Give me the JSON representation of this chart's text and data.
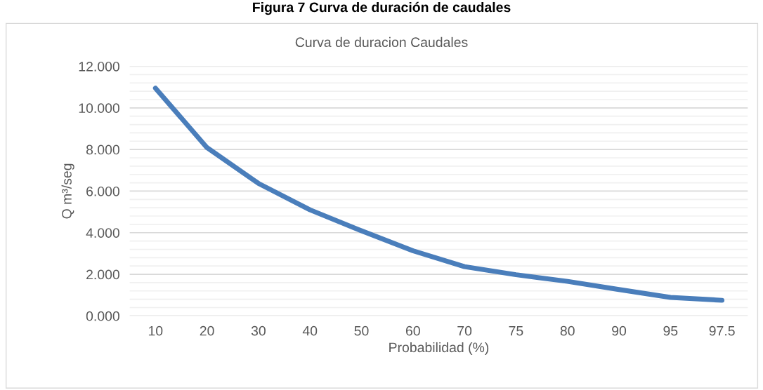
{
  "chart_data": {
    "type": "line",
    "title": "Figura 7 Curva de duración de caudales",
    "subtitle": "Curva de duracion Caudales",
    "xlabel": "Probabilidad (%)",
    "ylabel": "Q m³/seg",
    "categories": [
      "10",
      "20",
      "30",
      "40",
      "50",
      "60",
      "70",
      "75",
      "80",
      "90",
      "95",
      "97.5"
    ],
    "series": [
      {
        "color": "#4a7ebb",
        "values": [
          10.95,
          8.09,
          6.37,
          5.1,
          4.09,
          3.13,
          2.37,
          1.98,
          1.66,
          1.27,
          0.89,
          0.75
        ]
      }
    ],
    "ylim": [
      0,
      12
    ],
    "yticks": [
      {
        "value": 0,
        "label": "0.000"
      },
      {
        "value": 0.4,
        "label": null
      },
      {
        "value": 0.8,
        "label": null
      },
      {
        "value": 1.2,
        "label": null
      },
      {
        "value": 1.6,
        "label": null
      },
      {
        "value": 2,
        "label": "2.000"
      },
      {
        "value": 2.4,
        "label": null
      },
      {
        "value": 2.8,
        "label": null
      },
      {
        "value": 3.2,
        "label": null
      },
      {
        "value": 3.6,
        "label": null
      },
      {
        "value": 4,
        "label": "4.000"
      },
      {
        "value": 4.4,
        "label": null
      },
      {
        "value": 4.8,
        "label": null
      },
      {
        "value": 5.2,
        "label": null
      },
      {
        "value": 5.6,
        "label": null
      },
      {
        "value": 6,
        "label": "6.000"
      },
      {
        "value": 6.4,
        "label": null
      },
      {
        "value": 6.8,
        "label": null
      },
      {
        "value": 7.2,
        "label": null
      },
      {
        "value": 7.6,
        "label": null
      },
      {
        "value": 8,
        "label": "8.000"
      },
      {
        "value": 8.4,
        "label": null
      },
      {
        "value": 8.8,
        "label": null
      },
      {
        "value": 9.2,
        "label": null
      },
      {
        "value": 9.6,
        "label": null
      },
      {
        "value": 10,
        "label": "10.000"
      },
      {
        "value": 10.4,
        "label": null
      },
      {
        "value": 10.8,
        "label": null
      },
      {
        "value": 11.2,
        "label": null
      },
      {
        "value": 11.6,
        "label": null
      },
      {
        "value": 12,
        "label": "12.000"
      }
    ],
    "grid": "y",
    "legend": false,
    "marker": "none",
    "line_style": "solid"
  }
}
